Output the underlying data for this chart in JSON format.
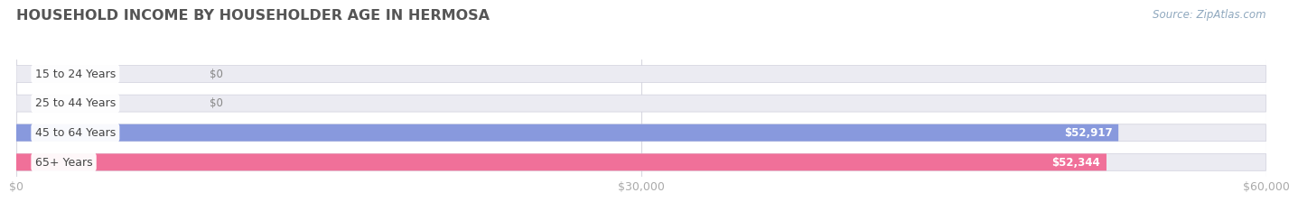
{
  "title": "HOUSEHOLD INCOME BY HOUSEHOLDER AGE IN HERMOSA",
  "source": "Source: ZipAtlas.com",
  "categories": [
    "15 to 24 Years",
    "25 to 44 Years",
    "45 to 64 Years",
    "65+ Years"
  ],
  "values": [
    0,
    0,
    52917,
    52344
  ],
  "bar_colors": [
    "#c9a8d4",
    "#7ecfc4",
    "#8899dd",
    "#f07099"
  ],
  "bar_bg_color": "#ebebf2",
  "xlim": [
    0,
    60000
  ],
  "xticks": [
    0,
    30000,
    60000
  ],
  "xtick_labels": [
    "$0",
    "$30,000",
    "$60,000"
  ],
  "fig_bg_color": "#ffffff",
  "title_color": "#555555",
  "title_fontsize": 11.5,
  "label_fontsize": 9,
  "value_fontsize": 8.5,
  "source_fontsize": 8.5,
  "source_color": "#8fa8be",
  "bar_height": 0.58,
  "label_text_color": "#444444",
  "tick_color": "#aaaaaa",
  "grid_color": "#d8d8e0",
  "zero_label_color": "#888888"
}
